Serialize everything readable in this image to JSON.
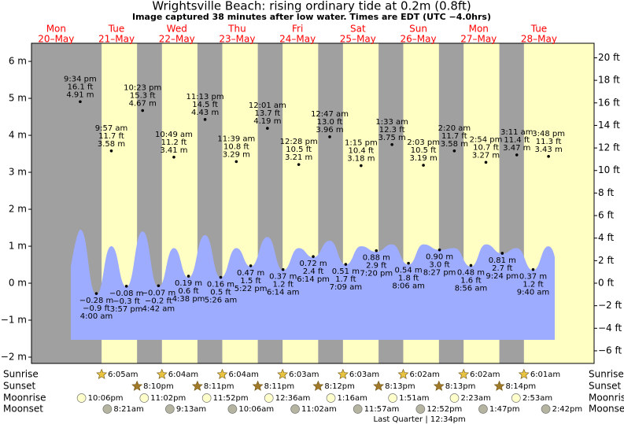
{
  "chart_data": {
    "type": "tide",
    "title": "Wrightsville Beach: rising  ordinary tide at 0.2m (0.8ft)",
    "subtitle": "Image captured 38 minutes after low water. Times are EDT (UTC −4.0hrs)",
    "ylim": [
      -2.17,
      6.49
    ],
    "yticks": [
      {
        "value": 6,
        "label": "6 m"
      },
      {
        "value": 5,
        "label": "5 m"
      },
      {
        "value": 4,
        "label": "4 m"
      },
      {
        "value": 3,
        "label": "3 m"
      },
      {
        "value": 2,
        "label": "2 m"
      },
      {
        "value": 1,
        "label": "1 m"
      },
      {
        "value": 0,
        "label": "0 m"
      },
      {
        "value": -1,
        "label": "−1 m"
      },
      {
        "value": -2,
        "label": "−2 m"
      }
    ],
    "y2lim": [
      -7.12,
      21.29
    ],
    "y2ticks": [
      {
        "value": 20,
        "label": "20 ft"
      },
      {
        "value": 18,
        "label": "18 ft"
      },
      {
        "value": 16,
        "label": "16 ft"
      },
      {
        "value": 14,
        "label": "14 ft"
      },
      {
        "value": 12,
        "label": "12 ft"
      },
      {
        "value": 10,
        "label": "10 ft"
      },
      {
        "value": 8,
        "label": "8 ft"
      },
      {
        "value": 6,
        "label": "6 ft"
      },
      {
        "value": 4,
        "label": "4 ft"
      },
      {
        "value": 2,
        "label": "2 ft"
      },
      {
        "value": 0,
        "label": "0 ft"
      },
      {
        "value": -2,
        "label": "−2 ft"
      },
      {
        "value": -4,
        "label": "−4 ft"
      },
      {
        "value": -6,
        "label": "−6 ft"
      }
    ],
    "row_labels": {
      "sunrise": "Sunrise",
      "sunset": "Sunset",
      "moonrise": "Moonrise",
      "moonset": "Moonset"
    },
    "days": [
      {
        "dow": "Mon",
        "date": "20–May",
        "sunrise": null,
        "sunset": null,
        "moonrise": "10:06pm",
        "moonset": null,
        "tides": [
          {
            "time": "9:34 pm",
            "ft": 16.1,
            "ft_label": "16.1 ft",
            "m": 4.91,
            "m_label": "4.91 m",
            "level": 1.45
          }
        ]
      },
      {
        "dow": "Tue",
        "date": "21–May",
        "sunrise": "6:05am",
        "sunset": "8:10pm",
        "moonrise": "11:02pm",
        "moonset": "8:21am",
        "tides": [
          {
            "time": "4:00 am",
            "ft": -0.9,
            "ft_label": "−0.9 ft",
            "m": -0.28,
            "m_label": "−0.28 m",
            "level": -0.3
          },
          {
            "time": "9:57 am",
            "ft": 11.7,
            "ft_label": "11.7 ft",
            "m": 3.58,
            "m_label": "3.58 m",
            "level": 1.0
          },
          {
            "time": "3:57 pm",
            "ft": -0.3,
            "ft_label": "−0.3 ft",
            "m": -0.08,
            "m_label": "−0.08 m",
            "level": -0.1
          },
          {
            "time": "10:23 pm",
            "ft": 15.3,
            "ft_label": "15.3 ft",
            "m": 4.67,
            "m_label": "4.67 m",
            "level": 1.4
          }
        ]
      },
      {
        "dow": "Wed",
        "date": "22–May",
        "sunrise": "6:04am",
        "sunset": "8:11pm",
        "moonrise": "11:52pm",
        "moonset": "9:13am",
        "tides": [
          {
            "time": "4:42 am",
            "ft": -0.2,
            "ft_label": "−0.2 ft",
            "m": -0.07,
            "m_label": "−0.07 m",
            "level": -0.1
          },
          {
            "time": "10:49 am",
            "ft": 11.2,
            "ft_label": "11.2 ft",
            "m": 3.41,
            "m_label": "3.41 m",
            "level": 0.95
          },
          {
            "time": "4:38 pm",
            "ft": 0.6,
            "ft_label": "0.6 ft",
            "m": 0.19,
            "m_label": "0.19 m",
            "level": 0.15
          },
          {
            "time": "11:13 pm",
            "ft": 14.5,
            "ft_label": "14.5 ft",
            "m": 4.43,
            "m_label": "4.43 m",
            "level": 1.3
          }
        ]
      },
      {
        "dow": "Thu",
        "date": "23–May",
        "sunrise": "6:04am",
        "sunset": "8:11pm",
        "moonrise": null,
        "moonset": "10:06am",
        "tides": [
          {
            "time": "5:26 am",
            "ft": 0.5,
            "ft_label": "0.5 ft",
            "m": 0.16,
            "m_label": "0.16 m",
            "level": 0.15
          },
          {
            "time": "11:39 am",
            "ft": 10.8,
            "ft_label": "10.8 ft",
            "m": 3.29,
            "m_label": "3.29 m",
            "level": 0.95
          },
          {
            "time": "5:22 pm",
            "ft": 1.5,
            "ft_label": "1.5 ft",
            "m": 0.47,
            "m_label": "0.47 m",
            "level": 0.45
          }
        ]
      },
      {
        "dow": "Fri",
        "date": "24–May",
        "sunrise": "6:03am",
        "sunset": "8:12pm",
        "moonrise": "12:36am",
        "moonset": "11:02am",
        "tides": [
          {
            "time": "12:01 am",
            "ft": 13.7,
            "ft_label": "13.7 ft",
            "m": 4.19,
            "m_label": "4.19 m",
            "level": 1.25
          },
          {
            "time": "6:14 am",
            "ft": 1.2,
            "ft_label": "1.2 ft",
            "m": 0.37,
            "m_label": "0.37 m",
            "level": 0.35
          },
          {
            "time": "12:28 pm",
            "ft": 10.5,
            "ft_label": "10.5 ft",
            "m": 3.21,
            "m_label": "3.21 m",
            "level": 0.95
          },
          {
            "time": "6:14 pm",
            "ft": 2.4,
            "ft_label": "2.4 ft",
            "m": 0.72,
            "m_label": "0.72 m",
            "level": 0.7
          }
        ]
      },
      {
        "dow": "Sat",
        "date": "25–May",
        "sunrise": "6:03am",
        "sunset": "8:13pm",
        "moonrise": "1:16am",
        "moonset": "11:57am",
        "tides": [
          {
            "time": "12:47 am",
            "ft": 13.0,
            "ft_label": "13.0 ft",
            "m": 3.96,
            "m_label": "3.96 m",
            "level": 1.15
          },
          {
            "time": "7:09 am",
            "ft": 1.7,
            "ft_label": "1.7 ft",
            "m": 0.51,
            "m_label": "0.51 m",
            "level": 0.5
          },
          {
            "time": "1:15 pm",
            "ft": 10.4,
            "ft_label": "10.4 ft",
            "m": 3.18,
            "m_label": "3.18 m",
            "level": 1.0
          },
          {
            "time": "7:20 pm",
            "ft": 2.9,
            "ft_label": "2.9 ft",
            "m": 0.88,
            "m_label": "0.88 m",
            "level": 0.85
          }
        ]
      },
      {
        "dow": "Sun",
        "date": "26–May",
        "sunrise": "6:02am",
        "sunset": "8:13pm",
        "moonrise": "1:51am",
        "moonset": "12:52pm",
        "moon_phase": "Last Quarter | 12:34pm",
        "tides": [
          {
            "time": "1:33 am",
            "ft": 12.3,
            "ft_label": "12.3 ft",
            "m": 3.75,
            "m_label": "3.75 m",
            "level": 1.05
          },
          {
            "time": "8:06 am",
            "ft": 1.8,
            "ft_label": "1.8 ft",
            "m": 0.54,
            "m_label": "0.54 m",
            "level": 0.5
          },
          {
            "time": "2:03 pm",
            "ft": 10.5,
            "ft_label": "10.5 ft",
            "m": 3.19,
            "m_label": "3.19 m",
            "level": 1.05
          },
          {
            "time": "8:27 pm",
            "ft": 3.0,
            "ft_label": "3.0 ft",
            "m": 0.9,
            "m_label": "0.90 m",
            "level": 0.9
          }
        ]
      },
      {
        "dow": "Mon",
        "date": "27–May",
        "sunrise": "6:02am",
        "sunset": "8:14pm",
        "moonrise": "2:23am",
        "moonset": "1:47pm",
        "tides": [
          {
            "time": "2:20 am",
            "ft": 11.7,
            "ft_label": "11.7 ft",
            "m": 3.58,
            "m_label": "3.58 m",
            "level": 0.95
          },
          {
            "time": "8:56 am",
            "ft": 1.6,
            "ft_label": "1.6 ft",
            "m": 0.48,
            "m_label": "0.48 m",
            "level": 0.45
          },
          {
            "time": "2:54 pm",
            "ft": 10.7,
            "ft_label": "10.7 ft",
            "m": 3.27,
            "m_label": "3.27 m",
            "level": 1.05
          },
          {
            "time": "9:24 pm",
            "ft": 2.7,
            "ft_label": "2.7 ft",
            "m": 0.81,
            "m_label": "0.81 m",
            "level": 0.8
          }
        ]
      },
      {
        "dow": "Tue",
        "date": "28–May",
        "sunrise": "6:01am",
        "sunset": null,
        "moonrise": "2:53am",
        "moonset": "2:42pm",
        "tides": [
          {
            "time": "3:11 am",
            "ft": 11.4,
            "ft_label": "11.4 ft",
            "m": 3.47,
            "m_label": "3.47 m",
            "level": 0.95
          },
          {
            "time": "9:40 am",
            "ft": 1.2,
            "ft_label": "1.2 ft",
            "m": 0.37,
            "m_label": "0.37 m",
            "level": 0.35
          },
          {
            "time": "3:48 pm",
            "ft": 11.3,
            "ft_label": "11.3 ft",
            "m": 3.43,
            "m_label": "3.43 m",
            "level": 1.0
          }
        ]
      }
    ]
  }
}
